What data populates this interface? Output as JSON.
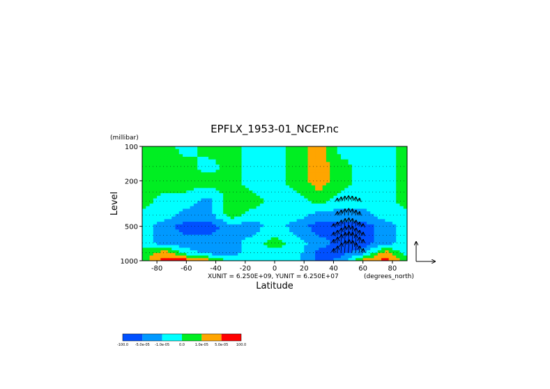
{
  "chart_data": {
    "type": "heatmap",
    "title": "EPFLX_1953-01_NCEP.nc",
    "xlabel": "Latitude",
    "ylabel": "Level",
    "y_units_label": "(millibar)",
    "x_units_label": "(degrees_north)",
    "vector_units": "XUNIT = 6.250E+09, YUNIT = 6.250E+07",
    "xlim": [
      -90,
      90
    ],
    "x_ticks": [
      -80,
      -60,
      -40,
      -20,
      0,
      20,
      40,
      60,
      80
    ],
    "y_ticks": [
      100,
      200,
      500,
      1000
    ],
    "y_scale": "log",
    "ylim": [
      1000,
      100
    ],
    "levels": [
      "-100.0",
      "-5.0e-05",
      "-1.0e-05",
      "0.0",
      "1.0e-05",
      "5.0e-05",
      "100.0"
    ],
    "level_colors": [
      "#0050ff",
      "#0099ff",
      "#00ffff",
      "#00ee22",
      "#ffa500",
      "#ff0000"
    ],
    "field": {
      "latitudes": [
        -90,
        -75,
        -60,
        -45,
        -30,
        -15,
        0,
        15,
        30,
        45,
        60,
        75,
        90
      ],
      "pressure_levels": [
        100,
        150,
        200,
        300,
        400,
        500,
        700,
        850,
        1000
      ],
      "class_index_rows": [
        [
          3,
          3,
          2,
          3,
          3,
          2,
          2,
          3,
          4,
          2,
          2,
          2,
          3
        ],
        [
          3,
          3,
          3,
          2,
          3,
          2,
          2,
          3,
          4,
          3,
          2,
          2,
          3
        ],
        [
          3,
          3,
          3,
          3,
          3,
          2,
          2,
          3,
          4,
          3,
          2,
          2,
          3
        ],
        [
          3,
          2,
          2,
          1,
          3,
          3,
          2,
          2,
          3,
          2,
          2,
          2,
          3
        ],
        [
          2,
          2,
          1,
          1,
          3,
          2,
          2,
          2,
          1,
          1,
          1,
          2,
          2
        ],
        [
          2,
          1,
          0,
          0,
          1,
          1,
          2,
          1,
          0,
          0,
          0,
          1,
          2
        ],
        [
          2,
          1,
          1,
          1,
          1,
          2,
          3,
          2,
          1,
          0,
          0,
          1,
          2
        ],
        [
          3,
          4,
          2,
          1,
          1,
          2,
          2,
          2,
          0,
          0,
          1,
          4,
          2
        ],
        [
          3,
          5,
          5,
          4,
          2,
          2,
          2,
          2,
          0,
          1,
          4,
          5,
          3
        ]
      ]
    },
    "vectors": {
      "region": "northern mid-latitudes, lower to mid troposphere",
      "lat_range": [
        30,
        65
      ],
      "max_upward_at_lat": 50
    },
    "colorbar_position": "bottom-left",
    "grid": "dotted"
  }
}
